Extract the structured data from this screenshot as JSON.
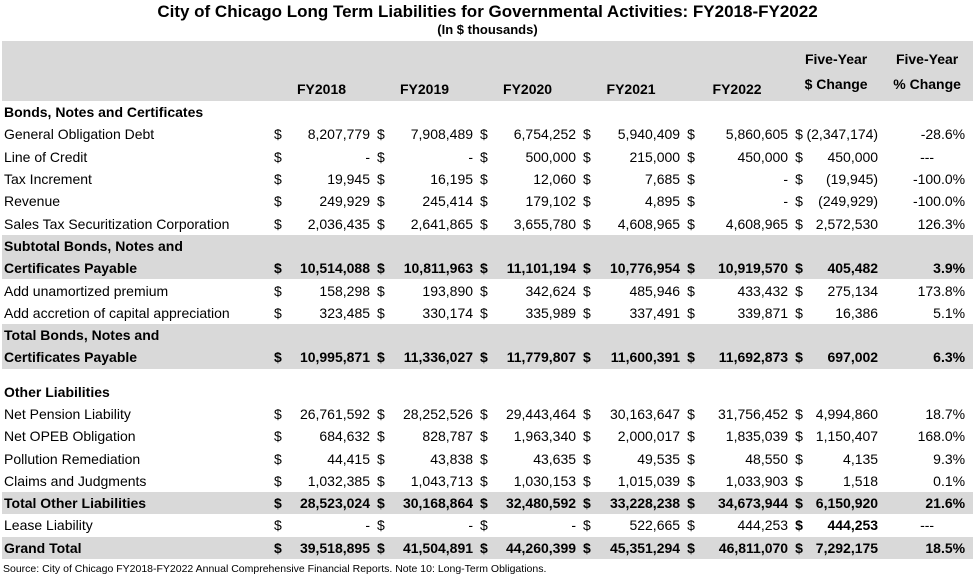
{
  "title": "City of Chicago Long Term Liabilities for Governmental Activities: FY2018-FY2022",
  "subtitle": "(In $ thousands)",
  "headers": {
    "years": [
      "FY2018",
      "FY2019",
      "FY2020",
      "FY2021",
      "FY2022"
    ],
    "change_dollar_line1": "Five-Year",
    "change_dollar_line2": "$ Change",
    "change_pct_line1": "Five-Year",
    "change_pct_line2": "% Change"
  },
  "sections": {
    "bonds_title": "Bonds, Notes and Certificates",
    "other_title": "Other Liabilities"
  },
  "rows": [
    {
      "label": "General Obligation Debt",
      "vals": [
        "8,207,779",
        "7,908,489",
        "6,754,252",
        "5,940,409",
        "5,860,605"
      ],
      "chg": "(2,347,174)",
      "pct": "-28.6%"
    },
    {
      "label": "Line of Credit",
      "vals": [
        "-",
        "-",
        "500,000",
        "215,000",
        "450,000"
      ],
      "chg": "450,000",
      "pct": "---"
    },
    {
      "label": "Tax Increment",
      "vals": [
        "19,945",
        "16,195",
        "12,060",
        "7,685",
        "-"
      ],
      "chg": "(19,945)",
      "pct": "-100.0%"
    },
    {
      "label": "Revenue",
      "vals": [
        "249,929",
        "245,414",
        "179,102",
        "4,895",
        "-"
      ],
      "chg": "(249,929)",
      "pct": "-100.0%"
    },
    {
      "label": "Sales Tax Securitization Corporation",
      "vals": [
        "2,036,435",
        "2,641,865",
        "3,655,780",
        "4,608,965",
        "4,608,965"
      ],
      "chg": "2,572,530",
      "pct": "126.3%"
    },
    {
      "label1": "Subtotal Bonds, Notes and",
      "label2": "Certificates Payable",
      "vals": [
        "10,514,088",
        "10,811,963",
        "11,101,194",
        "10,776,954",
        "10,919,570"
      ],
      "chg": "405,482",
      "pct": "3.9%"
    },
    {
      "label": "Add unamortized premium",
      "vals": [
        "158,298",
        "193,890",
        "342,624",
        "485,946",
        "433,432"
      ],
      "chg": "275,134",
      "pct": "173.8%"
    },
    {
      "label": "Add accretion of capital appreciation",
      "vals": [
        "323,485",
        "330,174",
        "335,989",
        "337,491",
        "339,871"
      ],
      "chg": "16,386",
      "pct": "5.1%"
    },
    {
      "label1": "Total Bonds, Notes and",
      "label2": "Certificates Payable",
      "vals": [
        "10,995,871",
        "11,336,027",
        "11,779,807",
        "11,600,391",
        "11,692,873"
      ],
      "chg": "697,002",
      "pct": "6.3%"
    },
    {
      "label": "Net Pension Liability",
      "vals": [
        "26,761,592",
        "28,252,526",
        "29,443,464",
        "30,163,647",
        "31,756,452"
      ],
      "chg": "4,994,860",
      "pct": "18.7%"
    },
    {
      "label": "Net OPEB Obligation",
      "vals": [
        "684,632",
        "828,787",
        "1,963,340",
        "2,000,017",
        "1,835,039"
      ],
      "chg": "1,150,407",
      "pct": "168.0%"
    },
    {
      "label": "Pollution Remediation",
      "vals": [
        "44,415",
        "43,838",
        "43,635",
        "49,535",
        "48,550"
      ],
      "chg": "4,135",
      "pct": "9.3%"
    },
    {
      "label": "Claims and Judgments",
      "vals": [
        "1,032,385",
        "1,043,713",
        "1,030,153",
        "1,015,039",
        "1,033,903"
      ],
      "chg": "1,518",
      "pct": "0.1%"
    },
    {
      "label": "Total Other Liabilities",
      "vals": [
        "28,523,024",
        "30,168,864",
        "32,480,592",
        "33,228,238",
        "34,673,944"
      ],
      "chg": "6,150,920",
      "pct": "21.6%"
    },
    {
      "label": "Lease Liability",
      "vals": [
        "-",
        "-",
        "-",
        "522,665",
        "444,253"
      ],
      "chg": "444,253",
      "pct": "---"
    },
    {
      "label": "Grand Total",
      "vals": [
        "39,518,895",
        "41,504,891",
        "44,260,399",
        "45,351,294",
        "46,811,070"
      ],
      "chg": "7,292,175",
      "pct": "18.5%"
    }
  ],
  "currency_symbol": "$",
  "source": "Source: City of Chicago FY2018-FY2022 Annual Comprehensive Financial Reports. Note 10: Long-Term Obligations."
}
